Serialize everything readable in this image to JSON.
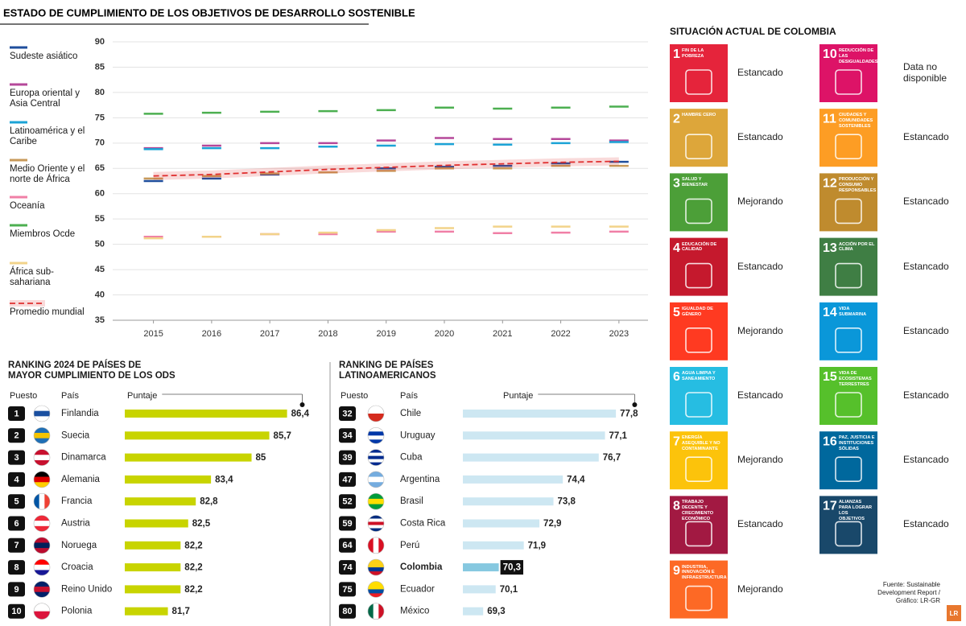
{
  "title": "ESTADO DE CUMPLIMIENTO DE LOS OBJETIVOS DE DESARROLLO SOSTENIBLE",
  "chart_data": [
    {
      "type": "line",
      "x": [
        2015,
        2016,
        2017,
        2018,
        2019,
        2020,
        2021,
        2022,
        2023
      ],
      "xlim": [
        2014.3,
        2023.5
      ],
      "xticks": [
        2015,
        2016,
        2017,
        2018,
        2019,
        2020,
        2021,
        2022,
        2023
      ],
      "ylim": [
        35,
        90
      ],
      "yticks": [
        35,
        40,
        45,
        50,
        55,
        60,
        65,
        70,
        75,
        80,
        85,
        90
      ],
      "grid": true,
      "series": [
        {
          "name": "Sudeste asiático",
          "color": "#1f4e9c",
          "style": "marker",
          "values": [
            62.5,
            63,
            63.8,
            64.2,
            65,
            65.3,
            65.5,
            66,
            66.3
          ]
        },
        {
          "name": "Europa oriental y Asia Central",
          "color": "#b5489a",
          "style": "marker",
          "values": [
            69,
            69.5,
            70,
            70,
            70.5,
            71,
            70.8,
            70.8,
            70.5
          ]
        },
        {
          "name": "Latinoamérica y el Caribe",
          "color": "#1ba3d6",
          "style": "marker",
          "values": [
            68.8,
            69,
            69,
            69.3,
            69.5,
            69.8,
            69.7,
            70,
            70.2
          ]
        },
        {
          "name": "Medio Oriente y el norte de África",
          "color": "#c89a5a",
          "style": "marker",
          "values": [
            63,
            63.5,
            64,
            64.2,
            64.5,
            65,
            65,
            65.5,
            65.5
          ]
        },
        {
          "name": "Oceanía",
          "color": "#f07fa6",
          "style": "marker",
          "values": [
            51.5,
            51.5,
            52,
            52,
            52.5,
            52.5,
            52.2,
            52.3,
            52.5
          ]
        },
        {
          "name": "Miembros Ocde",
          "color": "#4caf50",
          "style": "marker",
          "values": [
            75.8,
            76,
            76.2,
            76.3,
            76.5,
            77,
            76.8,
            77,
            77.2
          ]
        },
        {
          "name": "África sub-sahariana",
          "color": "#f2d38a",
          "style": "marker",
          "values": [
            51.2,
            51.5,
            52,
            52.3,
            52.8,
            53.2,
            53.5,
            53.5,
            53.5
          ]
        },
        {
          "name": "Promedio mundial",
          "color": "#e03030",
          "style": "dashed",
          "values": [
            63.5,
            63.8,
            64.3,
            64.8,
            65.2,
            65.6,
            65.9,
            66.2,
            66.4
          ]
        }
      ]
    },
    {
      "type": "bar",
      "orientation": "horizontal",
      "title": "RANKING 2024 DE PAÍSES DE MAYOR CUMPLIMIENTO DE LOS ODS",
      "rank_label": "Puesto",
      "category_label": "País",
      "value_label": "Puntaje",
      "ranks": [
        1,
        2,
        3,
        4,
        5,
        6,
        7,
        8,
        9,
        10
      ],
      "categories": [
        "Finlandia",
        "Suecia",
        "Dinamarca",
        "Alemania",
        "Francia",
        "Austria",
        "Noruega",
        "Croacia",
        "Reino Unido",
        "Polonia"
      ],
      "values": [
        86.4,
        85.7,
        85,
        83.4,
        82.8,
        82.5,
        82.2,
        82.2,
        82.2,
        81.7
      ],
      "value_labels": [
        "86,4",
        "85,7",
        "85",
        "83,4",
        "82,8",
        "82,5",
        "82,2",
        "82,2",
        "82,2",
        "81,7"
      ],
      "colors": [
        "#c8d400",
        "#c8d400",
        "#c8d400",
        "#c8d400",
        "#c8d400",
        "#c8d400",
        "#c8d400",
        "#c8d400",
        "#c8d400",
        "#c8d400"
      ],
      "emphasis": [
        false,
        false,
        false,
        false,
        false,
        false,
        false,
        false,
        false,
        false
      ],
      "xlim": [
        80,
        87
      ]
    },
    {
      "type": "bar",
      "orientation": "horizontal",
      "title": "RANKING DE PAÍSES LATINOAMERICANOS",
      "rank_label": "Puesto",
      "category_label": "País",
      "value_label": "Puntaje",
      "ranks": [
        32,
        34,
        39,
        47,
        52,
        59,
        64,
        74,
        75,
        80
      ],
      "categories": [
        "Chile",
        "Uruguay",
        "Cuba",
        "Argentina",
        "Brasil",
        "Costa Rica",
        "Perú",
        "Colombia",
        "Ecuador",
        "México"
      ],
      "values": [
        77.8,
        77.1,
        76.7,
        74.4,
        73.8,
        72.9,
        71.9,
        70.3,
        70.1,
        69.3
      ],
      "value_labels": [
        "77,8",
        "77,1",
        "76,7",
        "74,4",
        "73,8",
        "72,9",
        "71,9",
        "70,3",
        "70,1",
        "69,3"
      ],
      "colors": [
        "#cde7f2",
        "#cde7f2",
        "#cde7f2",
        "#cde7f2",
        "#cde7f2",
        "#cde7f2",
        "#cde7f2",
        "#86c8e0",
        "#cde7f2",
        "#cde7f2"
      ],
      "emphasis": [
        false,
        false,
        false,
        false,
        false,
        false,
        false,
        true,
        false,
        false
      ],
      "xlim": [
        68,
        79
      ]
    }
  ],
  "colombia": {
    "title": "SITUACIÓN ACTUAL DE COLOMBIA",
    "goals": [
      {
        "number": 1,
        "label": "FIN DE LA POBREZA",
        "status": "Estancado",
        "color": "#e5243b"
      },
      {
        "number": 2,
        "label": "HAMBRE CERO",
        "status": "Estancado",
        "color": "#dda63a"
      },
      {
        "number": 3,
        "label": "SALUD Y BIENESTAR",
        "status": "Mejorando",
        "color": "#4c9f38"
      },
      {
        "number": 4,
        "label": "EDUCACIÓN DE CALIDAD",
        "status": "Estancado",
        "color": "#c5192d"
      },
      {
        "number": 5,
        "label": "IGUALDAD DE GÉNERO",
        "status": "Mejorando",
        "color": "#ff3a21"
      },
      {
        "number": 6,
        "label": "AGUA LIMPIA Y SANEAMIENTO",
        "status": "Estancado",
        "color": "#26bde2"
      },
      {
        "number": 7,
        "label": "ENERGÍA ASEQUIBLE Y NO CONTAMINANTE",
        "status": "Mejorando",
        "color": "#fcc30b"
      },
      {
        "number": 8,
        "label": "TRABAJO DECENTE Y CRECIMIENTO ECONÓMICO",
        "status": "Estancado",
        "color": "#a21942"
      },
      {
        "number": 9,
        "label": "INDUSTRIA, INNOVACIÓN E INFRAESTRUCTURA",
        "status": "Mejorando",
        "color": "#fd6925"
      },
      {
        "number": 10,
        "label": "REDUCCIÓN DE LAS DESIGUALDADES",
        "status": "Data no disponible",
        "color": "#dd1367"
      },
      {
        "number": 11,
        "label": "CIUDADES Y COMUNIDADES SOSTENIBLES",
        "status": "Estancado",
        "color": "#fd9d24"
      },
      {
        "number": 12,
        "label": "PRODUCCIÓN Y CONSUMO RESPONSABLES",
        "status": "Estancado",
        "color": "#bf8b2e"
      },
      {
        "number": 13,
        "label": "ACCIÓN POR EL CLIMA",
        "status": "Estancado",
        "color": "#3f7e44"
      },
      {
        "number": 14,
        "label": "VIDA SUBMARINA",
        "status": "Estancado",
        "color": "#0a97d9"
      },
      {
        "number": 15,
        "label": "VIDA DE ECOSISTEMAS TERRESTRES",
        "status": "Estancado",
        "color": "#56c02b"
      },
      {
        "number": 16,
        "label": "PAZ, JUSTICIA E INSTITUCIONES SÓLIDAS",
        "status": "Estancado",
        "color": "#00689d"
      },
      {
        "number": 17,
        "label": "ALIANZAS PARA LOGRAR LOS OBJETIVOS",
        "status": "Estancado",
        "color": "#19486a"
      }
    ]
  },
  "source": "Fuente: Sustainable Development Report / Gráfico: LR-GR",
  "logo": "LR"
}
